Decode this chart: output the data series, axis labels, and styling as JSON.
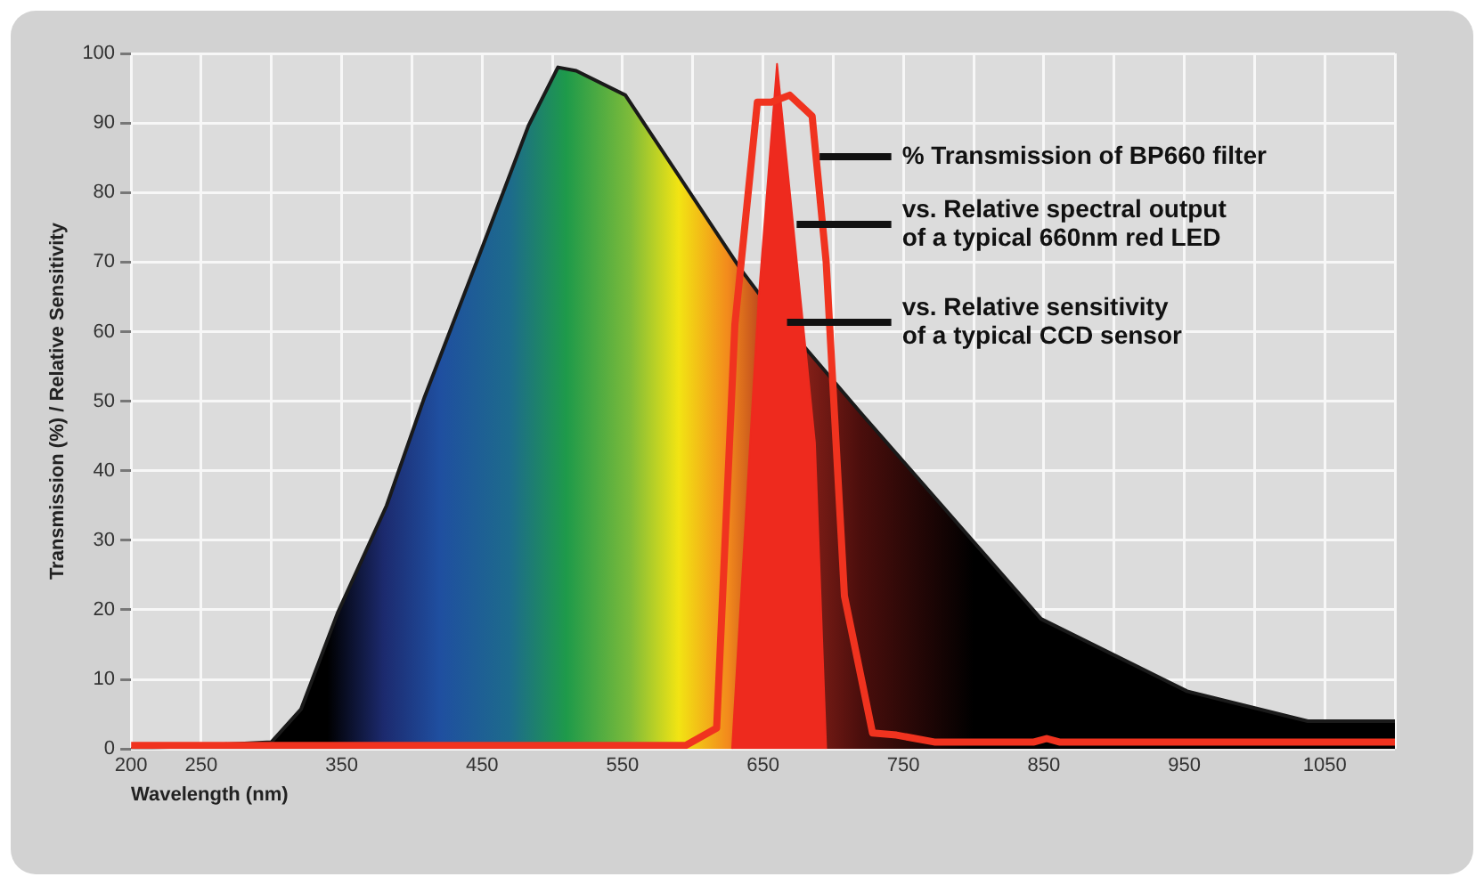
{
  "chart_data": {
    "type": "area",
    "xlabel": "Wavelength (nm)",
    "ylabel": "Transmission (%) / Relative Sensitivity",
    "xlim": [
      200,
      1100
    ],
    "xticks": [
      200,
      250,
      {
        "value": 300,
        "label": null
      },
      350,
      {
        "value": 400,
        "label": null
      },
      450,
      {
        "value": 500,
        "label": null
      },
      550,
      {
        "value": 600,
        "label": null
      },
      650,
      {
        "value": 700,
        "label": null
      },
      750,
      {
        "value": 800,
        "label": null
      },
      850,
      {
        "value": 900,
        "label": null
      },
      950,
      {
        "value": 1000,
        "label": null
      },
      1050,
      {
        "value": 1100,
        "label": null
      }
    ],
    "ylim": [
      0,
      100
    ],
    "yticks": [
      0,
      10,
      20,
      30,
      40,
      50,
      60,
      70,
      80,
      90,
      100
    ],
    "grid": true,
    "legend": false,
    "series": [
      {
        "color": "#1a1a1a",
        "x": [
          200,
          300,
          321,
          347,
          382,
          409,
          448,
          483,
          504,
          517,
          552,
          634,
          647,
          721,
          848,
          952,
          1038,
          1100
        ],
        "values": [
          0,
          1,
          5.7,
          19.5,
          35,
          50.6,
          71,
          89.6,
          98,
          97.5,
          94,
          69,
          65.5,
          48,
          18.7,
          8.3,
          4,
          4
        ]
      },
      {
        "color": "#ee2a1e",
        "x": [
          628,
          647,
          660,
          687,
          695
        ],
        "values": [
          0,
          65,
          98.5,
          44,
          0
        ]
      },
      {
        "type": "line",
        "color": "#f0331f",
        "x": [
          200,
          595,
          617,
          630,
          646,
          656,
          669,
          685,
          695,
          708,
          728,
          745,
          772,
          843,
          852,
          861,
          1100
        ],
        "values": [
          0.5,
          0.5,
          3,
          61,
          93,
          93,
          94,
          91,
          70,
          22,
          2.3,
          2,
          1,
          1,
          1.5,
          1,
          1
        ]
      }
    ],
    "annotations": [
      "% Transmission of BP660 filter",
      "vs. Relative spectral output\nof a typical 660nm red LED",
      "vs. Relative sensitivity\nof a typical CCD sensor"
    ]
  }
}
